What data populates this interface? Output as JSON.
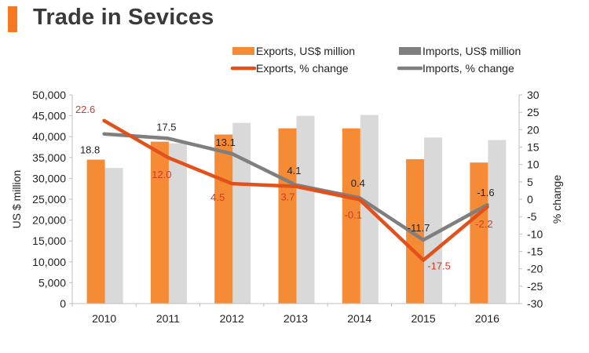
{
  "header": {
    "title": "Trade in Sevices",
    "accent_color": "#f47920"
  },
  "colors": {
    "exports_bar": "#f58b35",
    "imports_bar": "#d9d9d9",
    "exports_line": "#e2501b",
    "imports_line": "#7f7f7f",
    "imports_legend_bar": "#7f7f7f",
    "exports_label": "#d43a2a",
    "imports_label": "#222222",
    "axis": "#bfbfbf",
    "tick_text": "#222222"
  },
  "chart_data": {
    "type": "bar+line",
    "title": "Trade in Sevices",
    "categories": [
      "2010",
      "2011",
      "2012",
      "2013",
      "2014",
      "2015",
      "2016"
    ],
    "ylabel": "US $ million",
    "y2label": "% change",
    "ylim": [
      0,
      50000
    ],
    "y2lim": [
      -30,
      30
    ],
    "y_ticks": [
      "0",
      "5,000",
      "10,000",
      "15,000",
      "20,000",
      "25,000",
      "30,000",
      "35,000",
      "40,000",
      "45,000",
      "50,000"
    ],
    "y2_ticks": [
      "-30",
      "-25",
      "-20",
      "-15",
      "-10",
      "-5",
      "0",
      "5",
      "10",
      "15",
      "20",
      "25",
      "30"
    ],
    "legend_position": "top",
    "series": [
      {
        "name": "Exports, US$ million",
        "kind": "bar",
        "axis": "left",
        "values": [
          34500,
          38800,
          40500,
          42000,
          42000,
          34600,
          33800
        ]
      },
      {
        "name": "Imports, US$ million",
        "kind": "bar",
        "axis": "left",
        "values": [
          32500,
          38400,
          43300,
          45000,
          45200,
          39800,
          39200
        ]
      },
      {
        "name": "Exports, % change",
        "kind": "line",
        "axis": "right",
        "values": [
          22.6,
          12.0,
          4.5,
          3.7,
          -0.1,
          -17.5,
          -2.2
        ],
        "labels": [
          "22.6",
          "12.0",
          "4.5",
          "3.7",
          "-0.1",
          "-17.5",
          "-2.2"
        ]
      },
      {
        "name": "Imports, % change",
        "kind": "line",
        "axis": "right",
        "values": [
          18.8,
          17.5,
          13.1,
          4.1,
          0.4,
          -11.7,
          -1.6
        ],
        "labels": [
          "18.8",
          "17.5",
          "13.1",
          "4.1",
          "0.4",
          "-11.7",
          "-1.6"
        ]
      }
    ]
  }
}
